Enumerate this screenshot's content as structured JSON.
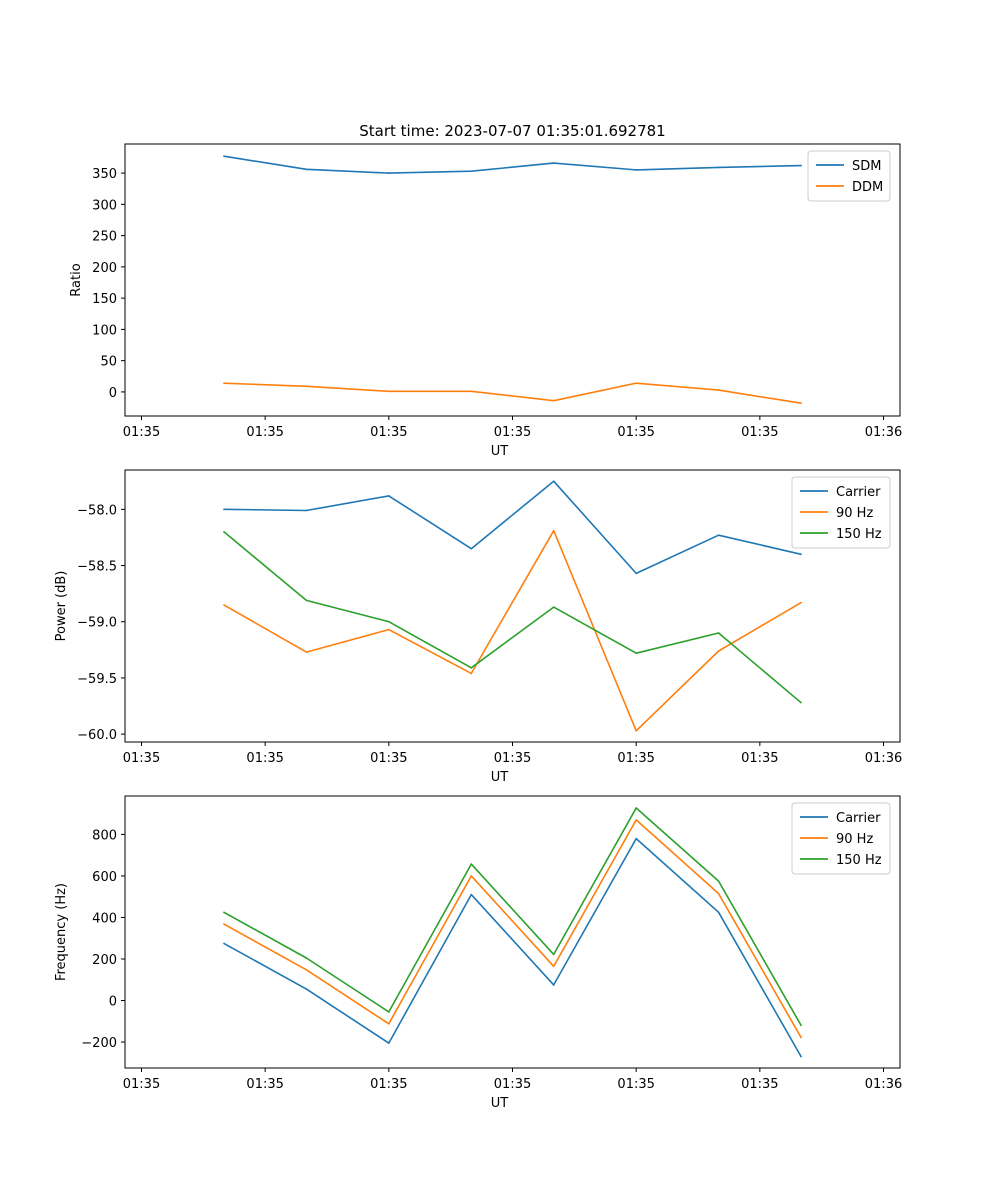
{
  "colors": {
    "blue": "#1f77b4",
    "orange": "#ff7f0e",
    "green": "#2ca02c"
  },
  "chart_data": [
    {
      "type": "line",
      "title": "Start time: 2023-07-07 01:35:01.692781",
      "xlabel": "UT",
      "ylabel": "Ratio",
      "x": [
        1,
        2,
        3,
        4,
        5,
        6,
        7,
        8
      ],
      "xlim": [
        -0.2,
        9.2
      ],
      "x_ticks": [
        0,
        1.5,
        3,
        4.5,
        6,
        7.5,
        9
      ],
      "x_tick_labels": [
        "01:35",
        "01:35",
        "01:35",
        "01:35",
        "01:35",
        "01:35",
        "01:36"
      ],
      "ylim": [
        -38.5,
        396.5
      ],
      "y_ticks": [
        0,
        50,
        100,
        150,
        200,
        250,
        300,
        350
      ],
      "y_tick_labels": [
        "0",
        "50",
        "100",
        "150",
        "200",
        "250",
        "300",
        "350"
      ],
      "legend_position": "top-right",
      "series": [
        {
          "name": "SDM",
          "color": "#1f77b4",
          "values": [
            377,
            356,
            350,
            353,
            366,
            355,
            359,
            362
          ]
        },
        {
          "name": "DDM",
          "color": "#ff7f0e",
          "values": [
            14,
            9,
            1,
            1,
            -14,
            14,
            3,
            -18
          ]
        }
      ]
    },
    {
      "type": "line",
      "title": "",
      "xlabel": "UT",
      "ylabel": "Power (dB)",
      "x": [
        1,
        2,
        3,
        4,
        5,
        6,
        7,
        8
      ],
      "xlim": [
        -0.2,
        9.2
      ],
      "x_ticks": [
        0,
        1.5,
        3,
        4.5,
        6,
        7.5,
        9
      ],
      "x_tick_labels": [
        "01:35",
        "01:35",
        "01:35",
        "01:35",
        "01:35",
        "01:35",
        "01:36"
      ],
      "ylim": [
        -60.07,
        -57.65
      ],
      "y_ticks": [
        -60.0,
        -59.5,
        -59.0,
        -58.5,
        -58.0
      ],
      "y_tick_labels": [
        "−60.0",
        "−59.5",
        "−59.0",
        "−58.5",
        "−58.0"
      ],
      "legend_position": "top-right",
      "series": [
        {
          "name": "Carrier",
          "color": "#1f77b4",
          "values": [
            -58.0,
            -58.01,
            -57.88,
            -58.35,
            -57.75,
            -58.57,
            -58.23,
            -58.4
          ]
        },
        {
          "name": "90 Hz",
          "color": "#ff7f0e",
          "values": [
            -58.85,
            -59.27,
            -59.07,
            -59.46,
            -58.19,
            -59.97,
            -59.26,
            -58.83
          ]
        },
        {
          "name": "150 Hz",
          "color": "#2ca02c",
          "values": [
            -58.2,
            -58.81,
            -59.0,
            -59.41,
            -58.87,
            -59.28,
            -59.1,
            -59.72
          ]
        }
      ]
    },
    {
      "type": "line",
      "title": "",
      "xlabel": "UT",
      "ylabel": "Frequency (Hz)",
      "x": [
        1,
        2,
        3,
        4,
        5,
        6,
        7,
        8
      ],
      "xlim": [
        -0.2,
        9.2
      ],
      "x_ticks": [
        0,
        1.5,
        3,
        4.5,
        6,
        7.5,
        9
      ],
      "x_tick_labels": [
        "01:35",
        "01:35",
        "01:35",
        "01:35",
        "01:35",
        "01:35",
        "01:36"
      ],
      "ylim": [
        -325,
        985
      ],
      "y_ticks": [
        -200,
        0,
        200,
        400,
        600,
        800
      ],
      "y_tick_labels": [
        "−200",
        "0",
        "200",
        "400",
        "600",
        "800"
      ],
      "legend_position": "top-right",
      "series": [
        {
          "name": "Carrier",
          "color": "#1f77b4",
          "values": [
            275,
            55,
            -205,
            510,
            75,
            780,
            425,
            -270
          ]
        },
        {
          "name": "90 Hz",
          "color": "#ff7f0e",
          "values": [
            368,
            148,
            -112,
            600,
            165,
            870,
            515,
            -178
          ]
        },
        {
          "name": "150 Hz",
          "color": "#2ca02c",
          "values": [
            425,
            205,
            -55,
            657,
            222,
            927,
            575,
            -120
          ]
        }
      ]
    }
  ]
}
